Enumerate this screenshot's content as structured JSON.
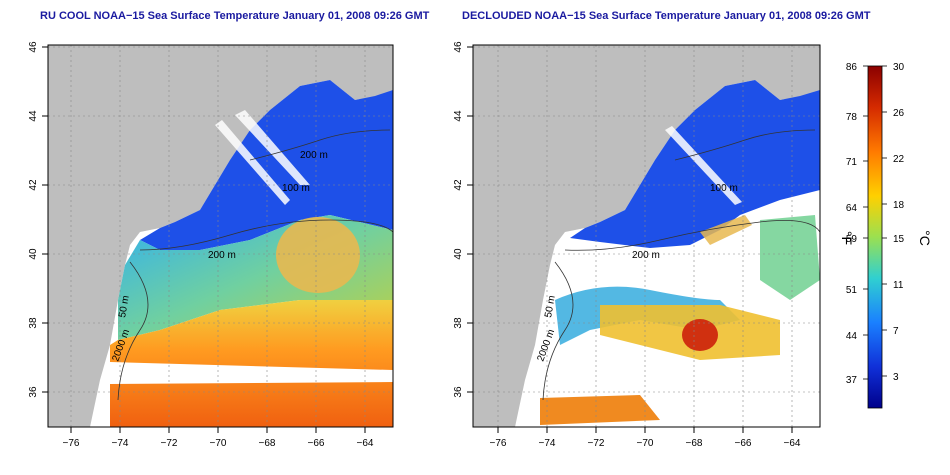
{
  "panels": [
    {
      "title": "RU COOL NOAA−15 Sea Surface Temperature January 01, 2008 09:26 GMT"
    },
    {
      "title": "DECLOUDED NOAA−15 Sea Surface Temperature January 01, 2008 09:26 GMT"
    }
  ],
  "axes": {
    "lon_ticks": [
      "−76",
      "−74",
      "−72",
      "−70",
      "−68",
      "−66",
      "−64"
    ],
    "lat_ticks": [
      "46",
      "44",
      "42",
      "40",
      "38",
      "36"
    ]
  },
  "contour_labels": [
    "200 m",
    "100 m",
    "200 m",
    "50 m",
    "2000 m"
  ],
  "colorbar": {
    "fahrenheit_ticks": [
      "86",
      "78",
      "71",
      "64",
      "59",
      "51",
      "44",
      "37"
    ],
    "celsius_ticks": [
      "30",
      "26",
      "22",
      "18",
      "15",
      "11",
      "7",
      "3"
    ],
    "fahrenheit_unit": "°F",
    "celsius_unit": "°C",
    "colors": [
      "#8b0000",
      "#d42a00",
      "#ff7a00",
      "#ffd000",
      "#9be050",
      "#30d0d0",
      "#1a80ff",
      "#1030d8",
      "#00008b"
    ]
  },
  "colors": {
    "land": "#bebebe",
    "ocean_cold": "#1e50e8",
    "ocean_warm": "#ff8a1a",
    "title": "#1a1aa0"
  }
}
